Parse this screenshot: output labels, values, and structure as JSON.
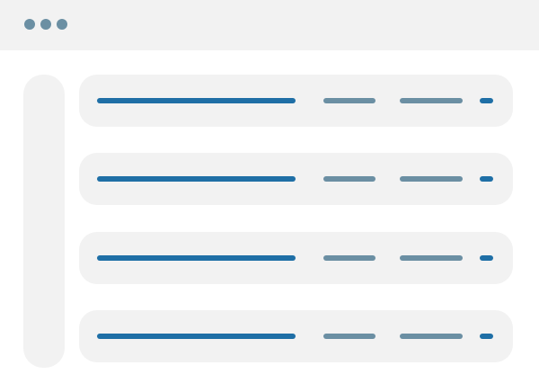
{
  "colors": {
    "background": "#ffffff",
    "panel": "#f2f2f2",
    "dot": "#6b8fa3",
    "primary_line": "#1f6fa6",
    "secondary_line": "#6b8fa3"
  },
  "window": {
    "controls": [
      "dot",
      "dot",
      "dot"
    ]
  },
  "rows": [
    {},
    {},
    {},
    {}
  ]
}
